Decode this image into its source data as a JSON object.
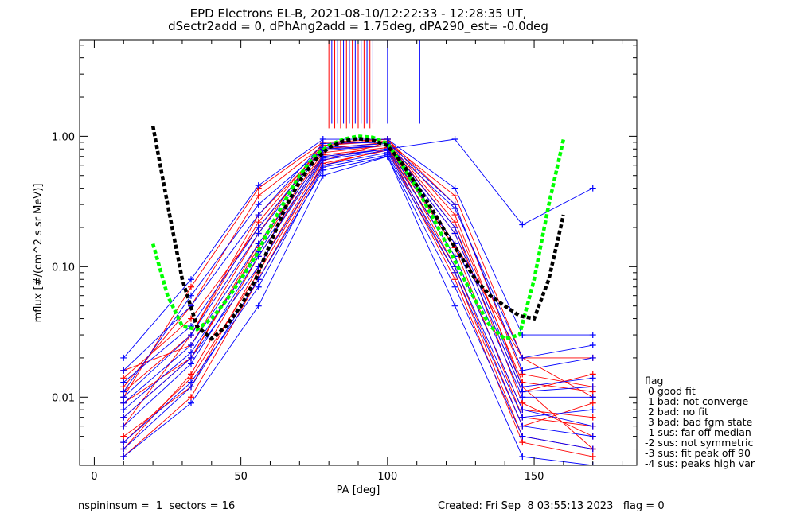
{
  "chart_data": {
    "type": "line",
    "title": [
      "EPD Electrons EL-B, 2021-08-10/12:22:33 - 12:28:35 UT,",
      "dSectr2add = 0, dPhAng2add = 1.75deg, dPA290_est=  -0.0deg"
    ],
    "xlabel": "PA [deg]",
    "ylabel": "mflux [#/(cm^2 s sr MeV)]",
    "xlim": [
      -5,
      185
    ],
    "ylim": [
      0.003,
      5.5
    ],
    "y_scale": "log",
    "grid": false,
    "x_ticks": [
      0,
      50,
      100,
      150
    ],
    "x_tick_labels": [
      "0",
      "50",
      "100",
      "150"
    ],
    "y_ticks": [
      0.01,
      0.1,
      1.0
    ],
    "y_tick_labels": [
      "0.01",
      "0.10",
      "1.00"
    ],
    "pa_bins": [
      10,
      33,
      56,
      78,
      100,
      123,
      146,
      170
    ],
    "colors": {
      "red": "#ff0000",
      "blue": "#0000ff",
      "green": "#00ff00",
      "black": "#000000"
    },
    "series": [
      {
        "color": "red",
        "values": [
          0.012,
          0.05,
          0.35,
          0.85,
          0.95,
          0.25,
          0.012,
          0.004
        ]
      },
      {
        "color": "red",
        "values": [
          0.006,
          0.03,
          0.25,
          0.8,
          0.9,
          0.2,
          0.009,
          0.005
        ]
      },
      {
        "color": "red",
        "values": [
          0.009,
          0.02,
          0.15,
          0.75,
          0.85,
          0.15,
          0.02,
          0.01
        ]
      },
      {
        "color": "red",
        "values": [
          0.004,
          0.015,
          0.12,
          0.7,
          0.8,
          0.12,
          0.008,
          0.007
        ]
      },
      {
        "color": "red",
        "values": [
          0.016,
          0.025,
          0.18,
          0.9,
          0.95,
          0.3,
          0.015,
          0.012
        ]
      },
      {
        "color": "red",
        "values": [
          0.005,
          0.012,
          0.1,
          0.65,
          0.9,
          0.1,
          0.006,
          0.009
        ]
      },
      {
        "color": "red",
        "values": [
          0.014,
          0.04,
          0.2,
          0.8,
          0.85,
          0.18,
          0.011,
          0.015
        ]
      },
      {
        "color": "red",
        "values": [
          0.0035,
          0.01,
          0.08,
          0.6,
          0.8,
          0.09,
          0.005,
          0.004
        ]
      },
      {
        "color": "red",
        "values": [
          0.01,
          0.07,
          0.4,
          0.9,
          0.9,
          0.35,
          0.02,
          0.02
        ]
      },
      {
        "color": "red",
        "values": [
          0.007,
          0.02,
          0.14,
          0.72,
          0.82,
          0.14,
          0.007,
          0.006
        ]
      },
      {
        "color": "red",
        "values": [
          0.011,
          0.03,
          0.22,
          0.85,
          0.92,
          0.22,
          0.013,
          0.011
        ]
      },
      {
        "color": "red",
        "values": [
          0.0045,
          0.014,
          0.09,
          0.62,
          0.78,
          0.08,
          0.0045,
          0.0035
        ]
      },
      {
        "color": "blue",
        "values": [
          0.011,
          0.06,
          0.3,
          0.8,
          0.85,
          0.28,
          0.02,
          0.025
        ]
      },
      {
        "color": "blue",
        "values": [
          0.007,
          0.02,
          0.1,
          0.6,
          0.75,
          0.1,
          0.007,
          0.008
        ]
      },
      {
        "color": "blue",
        "values": [
          0.004,
          0.012,
          0.08,
          0.55,
          0.7,
          0.07,
          0.005,
          0.004
        ]
      },
      {
        "color": "blue",
        "values": [
          0.02,
          0.08,
          0.42,
          0.95,
          0.95,
          0.4,
          0.03,
          0.03
        ]
      },
      {
        "color": "blue",
        "values": [
          0.009,
          0.025,
          0.15,
          0.7,
          0.8,
          0.15,
          0.01,
          0.01
        ]
      },
      {
        "color": "blue",
        "values": [
          0.0035,
          0.009,
          0.05,
          0.5,
          0.7,
          0.05,
          0.0035,
          0.003
        ]
      },
      {
        "color": "blue",
        "values": [
          0.013,
          0.035,
          0.2,
          0.82,
          0.88,
          0.2,
          0.012,
          0.014
        ]
      },
      {
        "color": "blue",
        "values": [
          0.006,
          0.018,
          0.12,
          0.66,
          0.78,
          0.12,
          0.008,
          0.006
        ]
      },
      {
        "color": "blue",
        "values": [
          0.016,
          0.05,
          0.25,
          0.88,
          0.9,
          0.3,
          0.016,
          0.02
        ]
      },
      {
        "color": "blue",
        "values": [
          0.008,
          0.022,
          0.13,
          0.68,
          0.8,
          0.95,
          0.21,
          0.4
        ]
      },
      {
        "color": "blue",
        "values": [
          0.0045,
          0.013,
          0.07,
          0.58,
          0.72,
          0.09,
          0.006,
          0.005
        ]
      },
      {
        "color": "blue",
        "values": [
          0.01,
          0.03,
          0.18,
          0.78,
          0.85,
          0.18,
          0.011,
          0.012
        ]
      },
      {
        "color": "green",
        "dashed": true,
        "curve": true,
        "x": [
          20,
          25,
          30,
          35,
          40,
          45,
          50,
          55,
          60,
          65,
          70,
          75,
          80,
          85,
          90,
          95,
          100,
          105,
          110,
          115,
          120,
          125,
          130,
          135,
          140,
          145,
          150,
          155,
          160
        ],
        "values": [
          0.15,
          0.06,
          0.035,
          0.033,
          0.04,
          0.055,
          0.08,
          0.12,
          0.2,
          0.32,
          0.5,
          0.7,
          0.85,
          0.95,
          1.0,
          0.98,
          0.88,
          0.6,
          0.4,
          0.25,
          0.15,
          0.09,
          0.055,
          0.035,
          0.028,
          0.03,
          0.08,
          0.3,
          0.95
        ]
      },
      {
        "color": "black",
        "dashed": true,
        "curve": true,
        "x": [
          20,
          25,
          30,
          35,
          40,
          45,
          50,
          55,
          60,
          65,
          70,
          75,
          80,
          85,
          90,
          95,
          100,
          105,
          110,
          115,
          120,
          125,
          130,
          135,
          140,
          145,
          150,
          155,
          160
        ],
        "values": [
          1.2,
          0.3,
          0.08,
          0.035,
          0.028,
          0.035,
          0.05,
          0.08,
          0.15,
          0.28,
          0.45,
          0.65,
          0.82,
          0.92,
          0.96,
          0.93,
          0.85,
          0.62,
          0.42,
          0.28,
          0.18,
          0.12,
          0.08,
          0.06,
          0.05,
          0.042,
          0.04,
          0.08,
          0.25
        ]
      }
    ],
    "spikes": {
      "red": [
        80,
        82,
        84,
        86,
        88,
        90,
        92,
        94
      ],
      "blue": [
        81,
        83,
        85,
        87,
        89,
        91,
        93,
        95,
        100,
        111
      ]
    },
    "legend": {
      "position": "lower-right outside",
      "title": "flag",
      "entries": [
        " 0 good fit",
        " 1 bad: not converge",
        " 2 bad: no fit",
        " 3 bad: bad fgm state",
        "-1 sus: far off median",
        "-2 sus: not symmetric",
        "-3 sus: fit peak off 90",
        "-4 sus: peaks high var"
      ]
    }
  },
  "footer": {
    "left": "nspininsum =  1  sectors = 16",
    "right": "Created: Fri Sep  8 03:55:13 2023   flag = 0"
  }
}
